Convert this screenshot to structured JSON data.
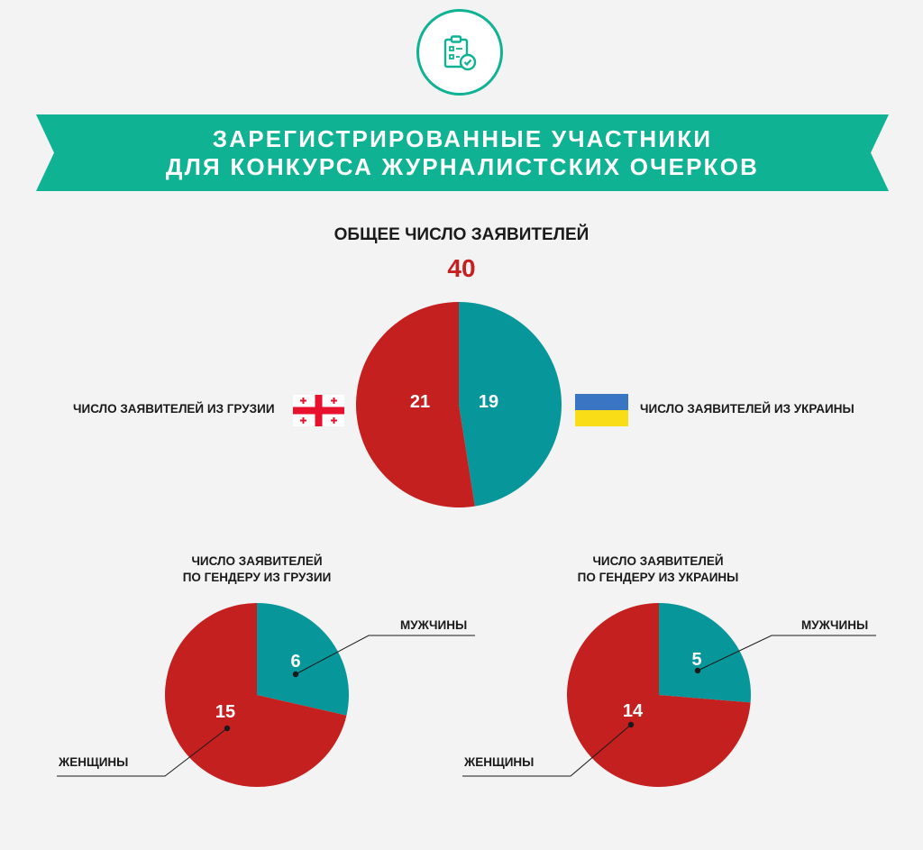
{
  "banner": {
    "line1": "ЗАРЕГИСТРИРОВАННЫЕ УЧАСТНИКИ",
    "line2": "ДЛЯ КОНКУРСА ЖУРНАЛИСТСКИХ ОЧЕРКОВ"
  },
  "header_icon": "clipboard-check-icon",
  "total": {
    "title": "ОБЩЕЕ ЧИСЛО ЗАЯВИТЕЛЕЙ",
    "value": "40"
  },
  "labels": {
    "georgia": "ЧИСЛО ЗАЯВИТЕЛЕЙ ИЗ ГРУЗИИ",
    "ukraine": "ЧИСЛО ЗАЯВИТЕЛЕЙ ИЗ УКРАИНЫ",
    "georgia_gender_line1": "ЧИСЛО ЗАЯВИТЕЛЕЙ",
    "georgia_gender_line2": "ПО ГЕНДЕРУ ИЗ ГРУЗИИ",
    "ukraine_gender_line1": "ЧИСЛО ЗАЯВИТЕЛЕЙ",
    "ukraine_gender_line2": "ПО ГЕНДЕРУ ИЗ УКРАИНЫ",
    "men": "МУЖЧИНЫ",
    "women": "ЖЕНЩИНЫ"
  },
  "flags": {
    "georgia": "georgia-flag-icon",
    "ukraine": "ukraine-flag-icon"
  },
  "colors": {
    "red": "#c4201f",
    "teal": "#07969a",
    "banner": "#0fb292"
  },
  "chart_data": [
    {
      "type": "pie",
      "categories": [
        "Грузия",
        "Украина"
      ],
      "values": [
        21,
        19
      ]
    },
    {
      "type": "pie",
      "categories": [
        "МУЖЧИНЫ",
        "ЖЕНЩИНЫ"
      ],
      "values": [
        6,
        15
      ]
    },
    {
      "type": "pie",
      "categories": [
        "МУЖЧИНЫ",
        "ЖЕНЩИНЫ"
      ],
      "values": [
        5,
        14
      ]
    }
  ]
}
